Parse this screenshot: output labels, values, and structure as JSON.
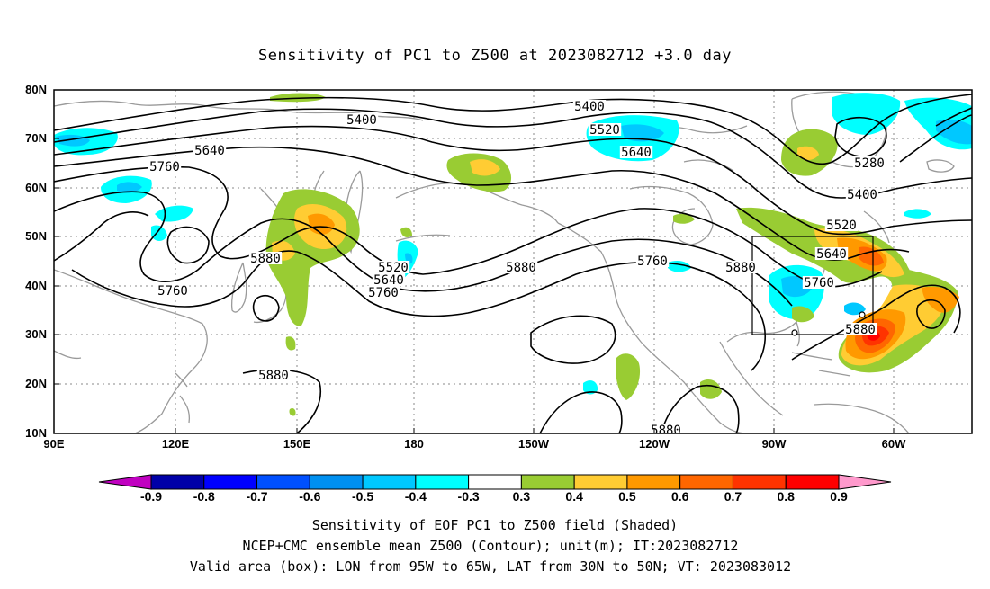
{
  "title": "Sensitivity of PC1 to Z500 at 2023082712 +3.0 day",
  "lat_labels": [
    "80N",
    "70N",
    "60N",
    "50N",
    "40N",
    "30N",
    "20N",
    "10N"
  ],
  "lon_labels": [
    "90E",
    "120E",
    "150E",
    "180",
    "150W",
    "120W",
    "90W",
    "60W"
  ],
  "contour_labels": [
    {
      "text": "5400",
      "pos": [
        402,
        136
      ]
    },
    {
      "text": "5400",
      "pos": [
        655,
        121
      ]
    },
    {
      "text": "5520",
      "pos": [
        672,
        147
      ]
    },
    {
      "text": "5640",
      "pos": [
        233,
        170
      ]
    },
    {
      "text": "5640",
      "pos": [
        707,
        172
      ]
    },
    {
      "text": "5760",
      "pos": [
        183,
        188
      ]
    },
    {
      "text": "5280",
      "pos": [
        966,
        184
      ]
    },
    {
      "text": "5400",
      "pos": [
        958,
        219
      ]
    },
    {
      "text": "5520",
      "pos": [
        935,
        253
      ]
    },
    {
      "text": "5640",
      "pos": [
        924,
        285
      ]
    },
    {
      "text": "5880",
      "pos": [
        295,
        290
      ]
    },
    {
      "text": "5520",
      "pos": [
        437,
        300
      ]
    },
    {
      "text": "5640",
      "pos": [
        432,
        314
      ]
    },
    {
      "text": "5760",
      "pos": [
        426,
        328
      ]
    },
    {
      "text": "5880",
      "pos": [
        579,
        300
      ]
    },
    {
      "text": "5760",
      "pos": [
        725,
        293
      ]
    },
    {
      "text": "5880",
      "pos": [
        823,
        300
      ]
    },
    {
      "text": "5760",
      "pos": [
        910,
        317
      ]
    },
    {
      "text": "5760",
      "pos": [
        192,
        326
      ]
    },
    {
      "text": "5880",
      "pos": [
        956,
        369
      ]
    },
    {
      "text": "5880",
      "pos": [
        304,
        420
      ]
    },
    {
      "text": "5880",
      "pos": [
        740,
        481
      ]
    }
  ],
  "colorbar": {
    "labels": [
      "-0.9",
      "-0.8",
      "-0.7",
      "-0.6",
      "-0.5",
      "-0.4",
      "-0.3",
      "0.3",
      "0.4",
      "0.5",
      "0.6",
      "0.7",
      "0.8",
      "0.9"
    ],
    "colors": [
      "#c000c0",
      "#0000a8",
      "#0000ff",
      "#0050ff",
      "#0090f0",
      "#00c8ff",
      "#00ffff",
      "#ffffff",
      "#99cc33",
      "#ffcc33",
      "#ff9900",
      "#ff6600",
      "#ff3300",
      "#ff0000",
      "#ff99cc"
    ]
  },
  "caption": {
    "line1": "Sensitivity of EOF PC1 to Z500 field (Shaded)",
    "line2": "NCEP+CMC ensemble mean Z500 (Contour); unit(m); IT:2023082712",
    "line3": "Valid area (box): LON from 95W to 65W, LAT from 30N to 50N; VT: 2023083012"
  }
}
